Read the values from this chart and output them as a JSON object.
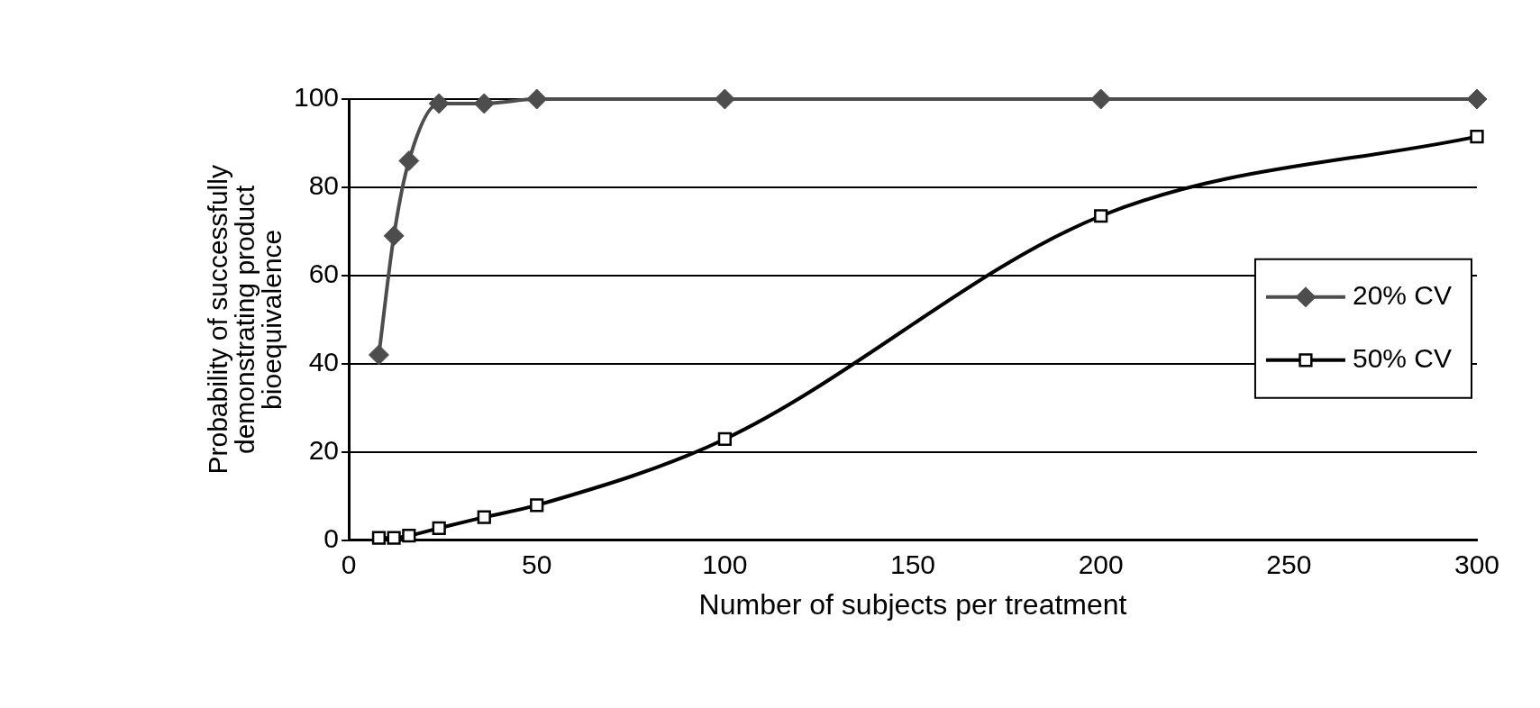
{
  "chart_data": {
    "type": "line",
    "xlabel": "Number of subjects per treatment",
    "ylabel": "Probability of successfully demonstrating product bioequivalence",
    "xlim": [
      0,
      300
    ],
    "xticks": [
      0,
      50,
      100,
      150,
      200,
      250,
      300
    ],
    "ylim": [
      0,
      100
    ],
    "yticks": [
      0,
      20,
      40,
      60,
      80,
      100
    ],
    "grid": "y",
    "legend": "right",
    "series": [
      {
        "name": "20% CV",
        "color": "#4d4d4d",
        "marker": "diamond",
        "x": [
          8,
          12,
          16,
          24,
          36,
          50,
          100,
          200,
          300
        ],
        "values": [
          42,
          69,
          86,
          99,
          99,
          100,
          100,
          100,
          100
        ]
      },
      {
        "name": "50% CV",
        "color": "#000000",
        "marker": "square",
        "x": [
          8,
          12,
          16,
          24,
          36,
          50,
          100,
          200,
          300
        ],
        "values": [
          0.5,
          0.5,
          1,
          2.7,
          5.2,
          7.9,
          22.9,
          73.5,
          91.5
        ]
      }
    ]
  }
}
